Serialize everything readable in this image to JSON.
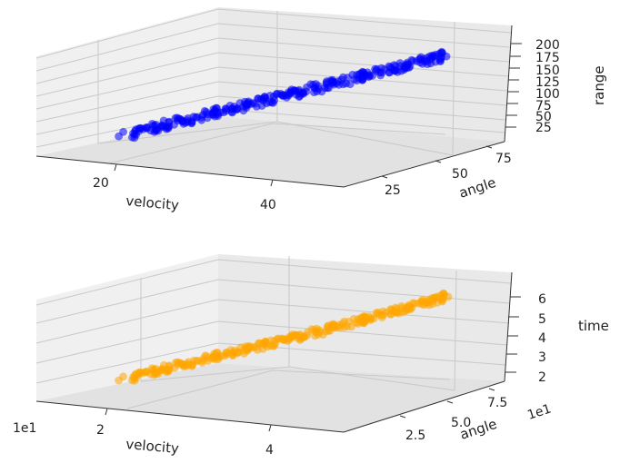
{
  "chart_data": [
    {
      "type": "scatter",
      "projection": "3d",
      "xlabel": "velocity",
      "ylabel": "angle",
      "zlabel": "range",
      "xticks": [
        "20",
        "40"
      ],
      "yticks": [
        "25",
        "50",
        "75"
      ],
      "zticks": [
        "25",
        "50",
        "75",
        "100",
        "125",
        "150",
        "175",
        "200"
      ],
      "x_offset_label": "",
      "y_offset_label": "",
      "color": "#0000ff",
      "alpha": 0.55,
      "grid": true,
      "note_points": "approx. 300 points lying along a near-linear band; velocity ~10-50, range rising ~20-200 with velocity",
      "series": [
        {
          "x": [
            10.2,
            12.0,
            14.1,
            16.0,
            18.0,
            20.0,
            22.0,
            24.0,
            26.0,
            28.0,
            30.0,
            32.0,
            34.0,
            36.0,
            38.0,
            40.0,
            42.0,
            44.0,
            46.0,
            48.0,
            49.5
          ],
          "y": [
            30,
            40,
            35,
            45,
            50,
            42,
            38,
            55,
            47,
            52,
            44,
            48,
            53,
            41,
            46,
            50,
            43,
            49,
            45,
            51,
            47
          ],
          "z": [
            22,
            28,
            35,
            44,
            52,
            60,
            70,
            78,
            87,
            96,
            105,
            113,
            122,
            132,
            140,
            150,
            158,
            168,
            177,
            187,
            196
          ]
        }
      ]
    },
    {
      "type": "scatter",
      "projection": "3d",
      "xlabel": "velocity",
      "ylabel": "angle",
      "zlabel": "time",
      "xticks": [
        "2",
        "4"
      ],
      "yticks": [
        "2.5",
        "5.0",
        "7.5"
      ],
      "zticks": [
        "2",
        "3",
        "4",
        "5",
        "6"
      ],
      "x_offset_label": "1e1",
      "y_offset_label": "1e1",
      "color": "#ffa500",
      "alpha": 0.55,
      "grid": true,
      "note_points": "approx. 300 points along a near-linear band; time rising ~2-6.5 with velocity",
      "series": [
        {
          "x": [
            1.02,
            1.2,
            1.4,
            1.6,
            1.8,
            2.0,
            2.2,
            2.4,
            2.6,
            2.8,
            3.0,
            3.2,
            3.4,
            3.6,
            3.8,
            4.0,
            4.2,
            4.4,
            4.6,
            4.8,
            4.95
          ],
          "y": [
            3.0,
            4.0,
            3.5,
            4.5,
            5.0,
            4.2,
            3.8,
            5.5,
            4.7,
            5.2,
            4.4,
            4.8,
            5.3,
            4.1,
            4.6,
            5.0,
            4.3,
            4.9,
            4.5,
            5.1,
            4.7
          ],
          "z": [
            1.9,
            2.1,
            2.3,
            2.5,
            2.7,
            2.9,
            3.1,
            3.3,
            3.5,
            3.7,
            3.9,
            4.1,
            4.3,
            4.6,
            4.8,
            5.0,
            5.3,
            5.6,
            5.8,
            6.1,
            6.4
          ]
        }
      ]
    }
  ]
}
